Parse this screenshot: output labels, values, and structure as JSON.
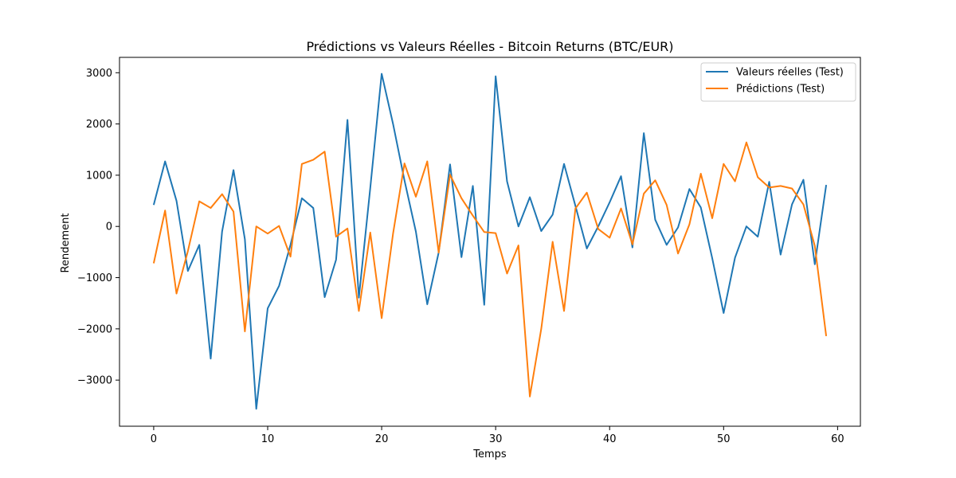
{
  "chart_data": {
    "type": "line",
    "title": "Prédictions vs Valeurs Réelles - Bitcoin Returns (BTC/EUR)",
    "xlabel": "Temps",
    "ylabel": "Rendement",
    "xlim": [
      -3,
      62
    ],
    "ylim": [
      -3900,
      3300
    ],
    "xticks": [
      0,
      10,
      20,
      30,
      40,
      50,
      60
    ],
    "xtick_labels": [
      "0",
      "10",
      "20",
      "30",
      "40",
      "50",
      "60"
    ],
    "yticks": [
      3000,
      2000,
      1000,
      0,
      -1000,
      -2000,
      -3000
    ],
    "ytick_labels": [
      "3000",
      "2000",
      "1000",
      "0",
      "−1000",
      "−2000",
      "−3000"
    ],
    "grid": false,
    "legend_position": "top-right",
    "x": [
      0,
      1,
      2,
      3,
      4,
      5,
      6,
      7,
      8,
      9,
      10,
      11,
      12,
      13,
      14,
      15,
      16,
      17,
      18,
      19,
      20,
      21,
      22,
      23,
      24,
      25,
      26,
      27,
      28,
      29,
      30,
      31,
      32,
      33,
      34,
      35,
      36,
      37,
      38,
      39,
      40,
      41,
      42,
      43,
      44,
      45,
      46,
      47,
      48,
      49,
      50,
      51,
      52,
      53,
      54,
      55,
      56,
      57,
      58,
      59
    ],
    "series": [
      {
        "name": "Valeurs réelles (Test)",
        "color": "#1f77b4",
        "values": [
          420,
          1270,
          500,
          -870,
          -360,
          -2580,
          -100,
          1100,
          -250,
          -3560,
          -1600,
          -1160,
          -360,
          550,
          360,
          -1380,
          -650,
          2080,
          -1390,
          750,
          2980,
          2000,
          900,
          -100,
          -1520,
          -510,
          1210,
          -600,
          790,
          -1530,
          2930,
          880,
          0,
          570,
          -90,
          230,
          1220,
          400,
          -430,
          0,
          470,
          980,
          -410,
          1820,
          130,
          -360,
          -20,
          730,
          370,
          -620,
          -1690,
          -610,
          0,
          -200,
          870,
          -550,
          430,
          910,
          -740,
          810
        ]
      },
      {
        "name": "Prédictions (Test)",
        "color": "#ff7f0e",
        "values": [
          -720,
          310,
          -1310,
          -480,
          490,
          360,
          630,
          290,
          -2050,
          0,
          -140,
          10,
          -590,
          1220,
          1300,
          1460,
          -200,
          -40,
          -1650,
          -120,
          -1790,
          -140,
          1230,
          580,
          1270,
          -510,
          1010,
          550,
          210,
          -110,
          -130,
          -920,
          -370,
          -3320,
          -2000,
          -300,
          -1650,
          350,
          660,
          -50,
          -220,
          350,
          -350,
          640,
          900,
          420,
          -530,
          40,
          1030,
          160,
          1220,
          880,
          1640,
          960,
          760,
          790,
          740,
          430,
          -380,
          -2140
        ]
      }
    ]
  }
}
